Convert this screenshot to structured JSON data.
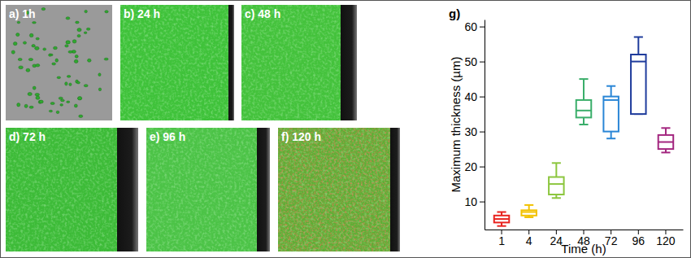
{
  "panels": [
    {
      "label": "a) 1h"
    },
    {
      "label": "b) 24 h"
    },
    {
      "label": "c) 48 h"
    },
    {
      "label": "d) 72 h"
    },
    {
      "label": "e) 96 h"
    },
    {
      "label": "f) 120 h"
    }
  ],
  "chart_data": {
    "type": "box",
    "title": "g)",
    "x_label": "Time (h)",
    "y_label": "Maximum thickness (µm)",
    "categories": [
      "1",
      "4",
      "24",
      "48",
      "72",
      "96",
      "120"
    ],
    "boxes": [
      {
        "min": 3,
        "q1": 4,
        "median": 5,
        "q3": 6,
        "max": 7
      },
      {
        "min": 5.5,
        "q1": 6,
        "median": 7,
        "q3": 7.5,
        "max": 9
      },
      {
        "min": 11,
        "q1": 12,
        "median": 15,
        "q3": 17,
        "max": 21
      },
      {
        "min": 32,
        "q1": 34,
        "median": 36,
        "q3": 39,
        "max": 45
      },
      {
        "min": 28,
        "q1": 30,
        "median": 39,
        "q3": 40,
        "max": 43
      },
      {
        "min": 35,
        "q1": 35,
        "median": 50,
        "q3": 52,
        "max": 57
      },
      {
        "min": 24,
        "q1": 25,
        "median": 27,
        "q3": 29,
        "max": 31
      }
    ],
    "colors": [
      "#e8231f",
      "#f2c200",
      "#8cc63e",
      "#3aae6a",
      "#2a86d6",
      "#1f3c9c",
      "#a3267f"
    ],
    "ylim": [
      2,
      62
    ],
    "yticks": [
      10,
      20,
      30,
      40,
      50,
      60
    ]
  }
}
